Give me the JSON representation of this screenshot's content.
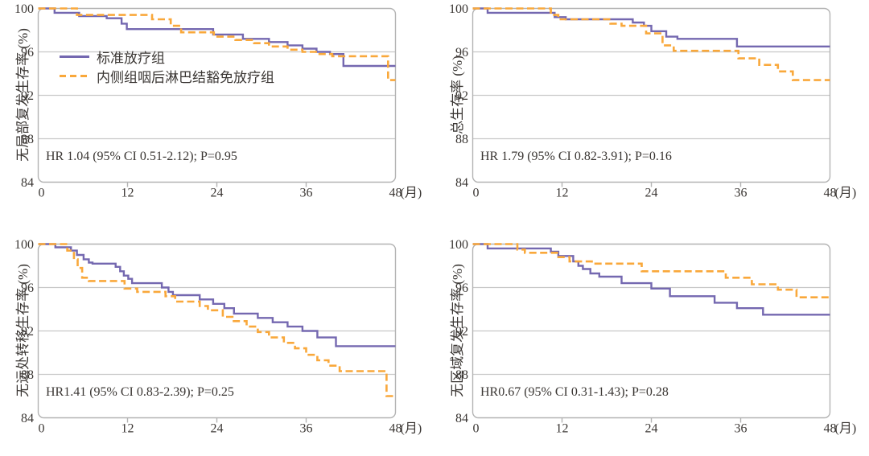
{
  "style": {
    "purple": "#7468B0",
    "orange": "#F9A83B",
    "grid_color": "#C8C8C8",
    "frame_color": "#B3B3B3",
    "text_color": "#3A3633",
    "background": "#FFFFFF"
  },
  "legend": {
    "series": [
      {
        "label": "标准放疗组",
        "color": "#7468B0",
        "style": "solid"
      },
      {
        "label": "内侧组咽后淋巴结豁免放疗组",
        "color": "#F9A83B",
        "style": "dashed"
      }
    ]
  },
  "axes": {
    "x": {
      "min": 0,
      "max": 48,
      "ticks": [
        0,
        12,
        24,
        36,
        48
      ],
      "unit": "(月)"
    },
    "y": {
      "min": 84,
      "max": 100,
      "ticks": [
        100,
        96,
        92,
        88,
        84
      ],
      "gridlines": [
        96,
        92,
        88
      ]
    }
  },
  "chart_data": [
    {
      "type": "line",
      "subtype": "kaplan-meier-step",
      "ylabel": "无局部复发生存率 (%)",
      "annotation": "HR 1.04 (95% CI 0.51-2.12); P=0.95",
      "xlim": [
        0,
        48
      ],
      "ylim": [
        84,
        100
      ],
      "xticks": [
        0,
        12,
        24,
        36,
        48
      ],
      "yticks": [
        84,
        88,
        92,
        96,
        100
      ],
      "x_unit": "(月)",
      "grid": true,
      "series": [
        {
          "name": "标准放疗组",
          "points": [
            [
              0,
              100
            ],
            [
              2.2,
              99.6
            ],
            [
              5.5,
              99.3
            ],
            [
              9.2,
              99.1
            ],
            [
              11.2,
              98.6
            ],
            [
              11.9,
              98.1
            ],
            [
              23.5,
              97.6
            ],
            [
              27.5,
              97.2
            ],
            [
              31,
              96.9
            ],
            [
              33.5,
              96.6
            ],
            [
              35.5,
              96.3
            ],
            [
              37.4,
              96.0
            ],
            [
              39.2,
              95.8
            ],
            [
              41,
              94.7
            ],
            [
              48,
              94.7
            ]
          ]
        },
        {
          "name": "内侧组咽后淋巴结豁免放疗组",
          "points": [
            [
              0,
              100
            ],
            [
              5.2,
              99.4
            ],
            [
              15.3,
              99.0
            ],
            [
              17.8,
              98.4
            ],
            [
              19.2,
              97.8
            ],
            [
              23.6,
              97.4
            ],
            [
              26.5,
              97.1
            ],
            [
              29,
              96.8
            ],
            [
              31,
              96.5
            ],
            [
              33.5,
              96.2
            ],
            [
              35.5,
              96.0
            ],
            [
              37.5,
              95.8
            ],
            [
              39.5,
              95.6
            ],
            [
              47,
              93.4
            ],
            [
              48,
              93.4
            ]
          ]
        }
      ]
    },
    {
      "type": "line",
      "subtype": "kaplan-meier-step",
      "ylabel": "总生存率 (%)",
      "annotation": "HR 1.79 (95% CI 0.82-3.91); P=0.16",
      "xlim": [
        0,
        48
      ],
      "ylim": [
        84,
        100
      ],
      "xticks": [
        0,
        12,
        24,
        36,
        48
      ],
      "yticks": [
        84,
        88,
        92,
        96,
        100
      ],
      "x_unit": "(月)",
      "grid": true,
      "series": [
        {
          "name": "标准放疗组",
          "points": [
            [
              0,
              100
            ],
            [
              2,
              99.6
            ],
            [
              11,
              99.2
            ],
            [
              12.5,
              99.0
            ],
            [
              21.5,
              98.7
            ],
            [
              23,
              98.4
            ],
            [
              24,
              97.9
            ],
            [
              26,
              97.4
            ],
            [
              27.5,
              97.2
            ],
            [
              35.5,
              96.5
            ],
            [
              48,
              96.5
            ]
          ]
        },
        {
          "name": "内侧组咽后淋巴结豁免放疗组",
          "points": [
            [
              0,
              100
            ],
            [
              10.5,
              99.4
            ],
            [
              11.5,
              99.0
            ],
            [
              18.5,
              98.6
            ],
            [
              20,
              98.4
            ],
            [
              23.3,
              97.7
            ],
            [
              25.5,
              96.6
            ],
            [
              27,
              96.1
            ],
            [
              35.7,
              95.4
            ],
            [
              38.5,
              94.8
            ],
            [
              41,
              94.2
            ],
            [
              43,
              93.4
            ],
            [
              48,
              93.4
            ]
          ]
        }
      ]
    },
    {
      "type": "line",
      "subtype": "kaplan-meier-step",
      "ylabel": "无远处转移生存率 (%)",
      "annotation": "HR1.41 (95% CI 0.83-2.39); P=0.25",
      "xlim": [
        0,
        48
      ],
      "ylim": [
        84,
        100
      ],
      "xticks": [
        0,
        12,
        24,
        36,
        48
      ],
      "yticks": [
        84,
        88,
        92,
        96,
        100
      ],
      "x_unit": "(月)",
      "grid": true,
      "series": [
        {
          "name": "标准放疗组",
          "points": [
            [
              0,
              100
            ],
            [
              2.3,
              99.7
            ],
            [
              4.4,
              99.4
            ],
            [
              5.2,
              99.0
            ],
            [
              6.1,
              98.6
            ],
            [
              6.8,
              98.3
            ],
            [
              7.3,
              98.2
            ],
            [
              10.4,
              97.9
            ],
            [
              11,
              97.5
            ],
            [
              11.5,
              97.1
            ],
            [
              12.1,
              96.8
            ],
            [
              12.6,
              96.4
            ],
            [
              16.6,
              96.0
            ],
            [
              17.5,
              95.6
            ],
            [
              18.1,
              95.3
            ],
            [
              21.7,
              94.9
            ],
            [
              23.5,
              94.5
            ],
            [
              25,
              94.1
            ],
            [
              26.3,
              93.6
            ],
            [
              29.5,
              93.2
            ],
            [
              31.5,
              92.8
            ],
            [
              33.5,
              92.4
            ],
            [
              35.5,
              92.0
            ],
            [
              37.5,
              91.4
            ],
            [
              40,
              90.6
            ],
            [
              48,
              90.6
            ]
          ]
        },
        {
          "name": "内侧组咽后淋巴结豁免放疗组",
          "points": [
            [
              0,
              100
            ],
            [
              3.9,
              99.4
            ],
            [
              4.8,
              98.6
            ],
            [
              5.3,
              97.8
            ],
            [
              5.9,
              96.9
            ],
            [
              6.8,
              96.6
            ],
            [
              11.6,
              95.9
            ],
            [
              13.3,
              95.6
            ],
            [
              17.1,
              95.2
            ],
            [
              18.4,
              94.7
            ],
            [
              21.7,
              94.3
            ],
            [
              22.8,
              93.9
            ],
            [
              24.8,
              93.3
            ],
            [
              26.1,
              92.9
            ],
            [
              28,
              92.4
            ],
            [
              29.5,
              91.9
            ],
            [
              31,
              91.4
            ],
            [
              33,
              90.9
            ],
            [
              34.5,
              90.4
            ],
            [
              36,
              89.8
            ],
            [
              37.5,
              89.3
            ],
            [
              39,
              88.8
            ],
            [
              40.5,
              88.3
            ],
            [
              46.8,
              86.0
            ],
            [
              48,
              86.0
            ]
          ]
        }
      ]
    },
    {
      "type": "line",
      "subtype": "kaplan-meier-step",
      "ylabel": "无区域复发生存率 (%)",
      "annotation": "HR0.67 (95% CI 0.31-1.43); P=0.28",
      "xlim": [
        0,
        48
      ],
      "ylim": [
        84,
        100
      ],
      "xticks": [
        0,
        12,
        24,
        36,
        48
      ],
      "yticks": [
        84,
        88,
        92,
        96,
        100
      ],
      "x_unit": "(月)",
      "grid": true,
      "series": [
        {
          "name": "标准放疗组",
          "points": [
            [
              0,
              100
            ],
            [
              2,
              99.6
            ],
            [
              10.5,
              99.3
            ],
            [
              11.5,
              98.9
            ],
            [
              13.5,
              98.4
            ],
            [
              14.2,
              98.0
            ],
            [
              14.8,
              97.7
            ],
            [
              15.8,
              97.3
            ],
            [
              17,
              97.0
            ],
            [
              20,
              96.4
            ],
            [
              24,
              95.9
            ],
            [
              26.5,
              95.2
            ],
            [
              32.5,
              94.6
            ],
            [
              35.5,
              94.1
            ],
            [
              39,
              93.5
            ],
            [
              48,
              93.5
            ]
          ]
        },
        {
          "name": "内侧组咽后淋巴结豁免放疗组",
          "points": [
            [
              0,
              100
            ],
            [
              6,
              99.5
            ],
            [
              7,
              99.2
            ],
            [
              11.5,
              98.8
            ],
            [
              13,
              98.4
            ],
            [
              16,
              98.2
            ],
            [
              22.7,
              97.5
            ],
            [
              34,
              96.9
            ],
            [
              37.5,
              96.3
            ],
            [
              41,
              95.8
            ],
            [
              43.5,
              95.1
            ],
            [
              48,
              95.1
            ]
          ]
        }
      ]
    }
  ]
}
